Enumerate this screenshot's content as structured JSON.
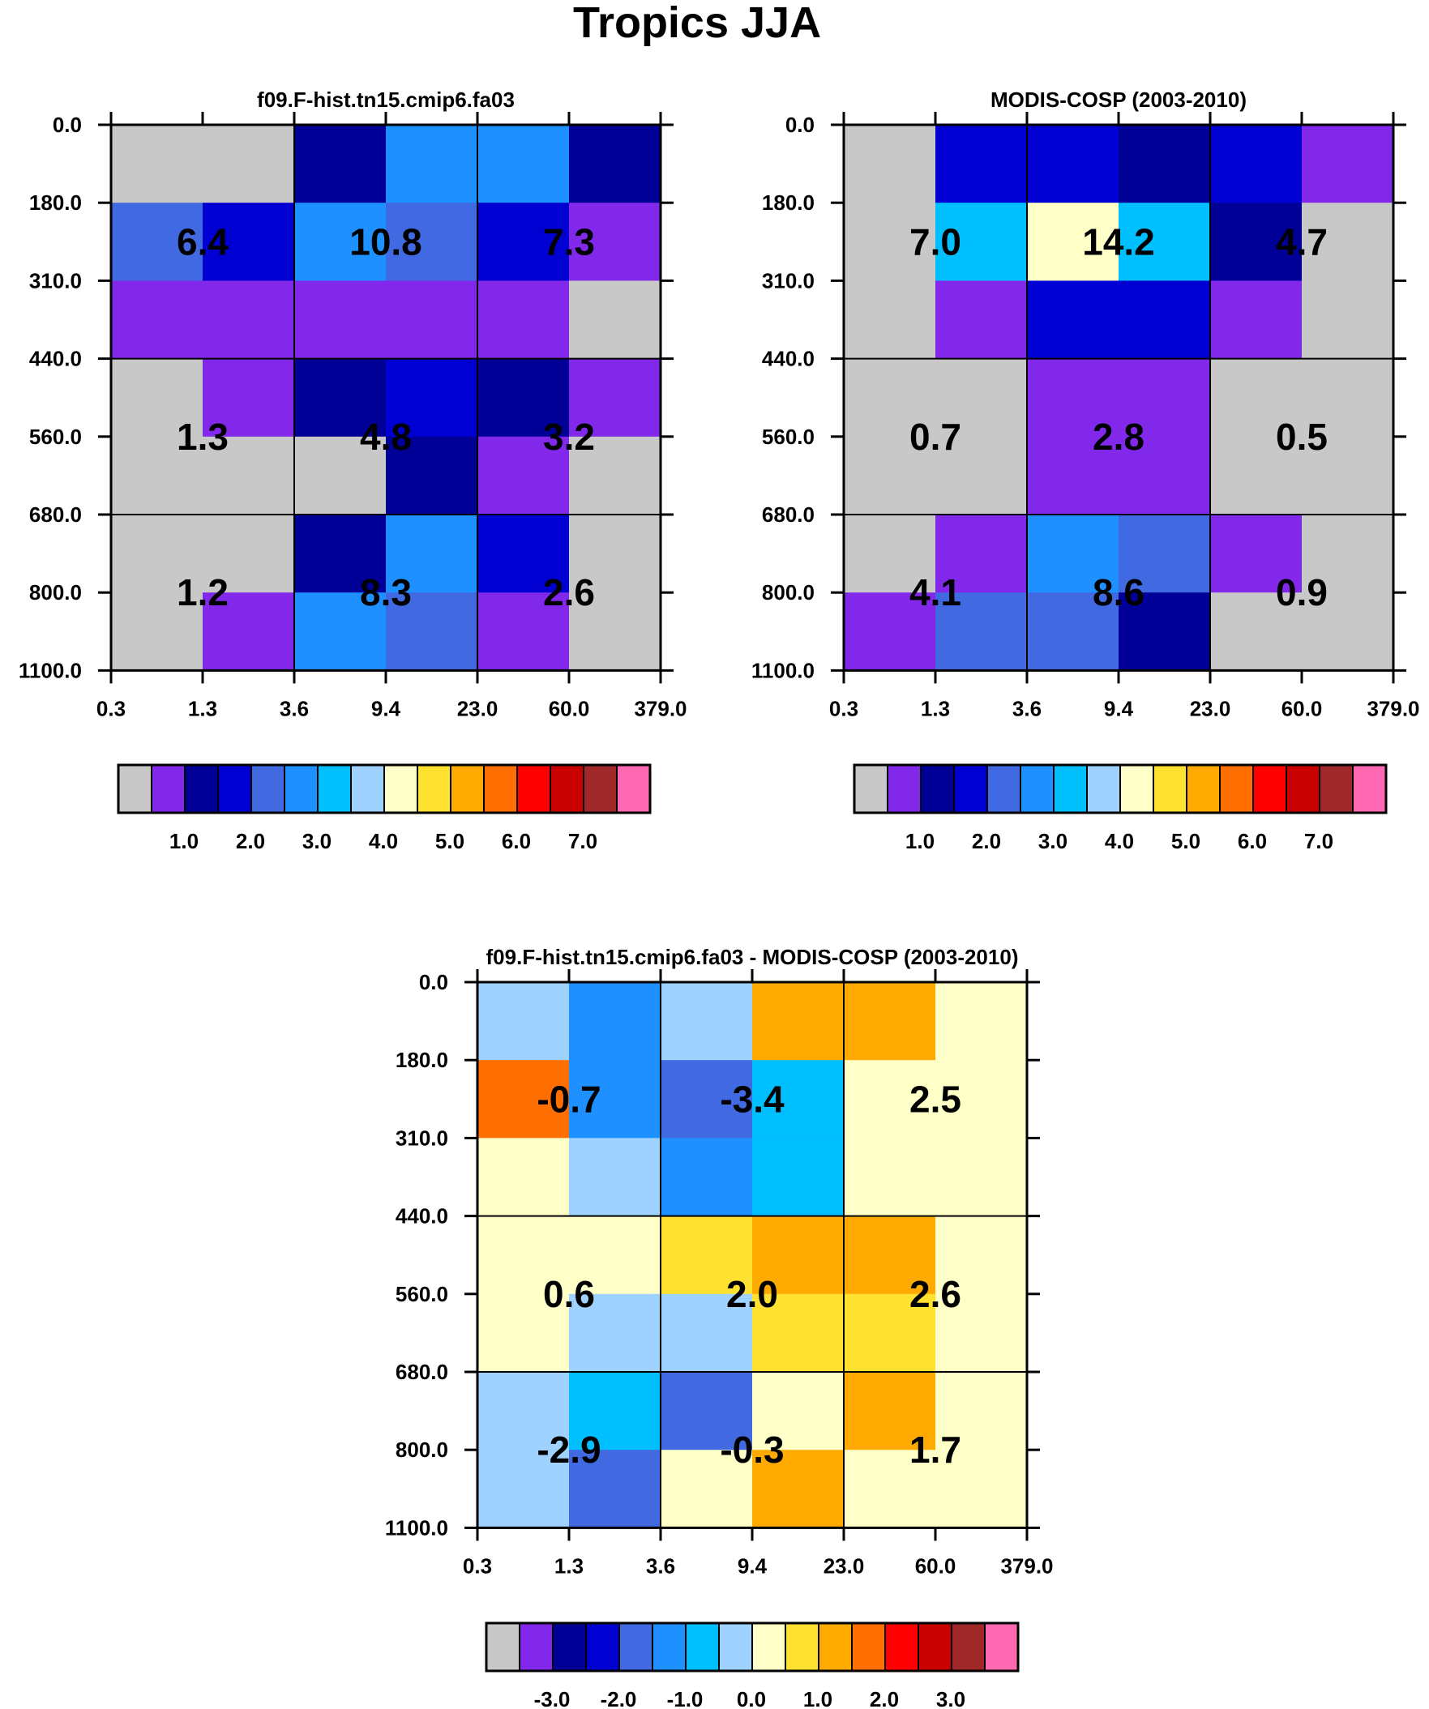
{
  "title": "Tropics JJA",
  "axes": {
    "x_ticks": [
      "0.3",
      "1.3",
      "3.6",
      "9.4",
      "23.0",
      "60.0",
      "379.0"
    ],
    "y_ticks": [
      "0.0",
      "180.0",
      "310.0",
      "440.0",
      "560.0",
      "680.0",
      "800.0",
      "1100.0"
    ]
  },
  "colors": {
    "palette": [
      "#c8c8c8",
      "#8228eb",
      "#000096",
      "#0000d2",
      "#4169e1",
      "#1e90ff",
      "#00bfff",
      "#a0d2ff",
      "#ffffc8",
      "#ffe132",
      "#ffaa00",
      "#ff6e00",
      "#ff0000",
      "#c80000",
      "#a02828",
      "#ff69b4"
    ],
    "text": "#000000",
    "grid": "#000000",
    "background": "#ffffff"
  },
  "colorbars": [
    {
      "labels": [
        "1.0",
        "2.0",
        "3.0",
        "4.0",
        "5.0",
        "6.0",
        "7.0"
      ]
    },
    {
      "labels": [
        "-3.0",
        "-2.0",
        "-1.0",
        "0.0",
        "1.0",
        "2.0",
        "3.0"
      ]
    }
  ],
  "chart_data": [
    {
      "type": "heatmap",
      "title": "f09.F-hist.tn15.cmip6.fa03",
      "colorbar": 0,
      "cells": [
        [
          0,
          0,
          2,
          5,
          5,
          2
        ],
        [
          4,
          3,
          5,
          4,
          3,
          1
        ],
        [
          1,
          1,
          1,
          1,
          1,
          0
        ],
        [
          0,
          1,
          2,
          3,
          2,
          1
        ],
        [
          0,
          0,
          0,
          2,
          1,
          0
        ],
        [
          0,
          0,
          2,
          5,
          3,
          0
        ],
        [
          0,
          1,
          5,
          4,
          1,
          0
        ]
      ],
      "group_totals": [
        [
          "6.4",
          "10.8",
          "7.3"
        ],
        [
          "1.3",
          "4.8",
          "3.2"
        ],
        [
          "1.2",
          "8.3",
          "2.6"
        ]
      ]
    },
    {
      "type": "heatmap",
      "title": "MODIS-COSP (2003-2010)",
      "colorbar": 0,
      "cells": [
        [
          0,
          3,
          3,
          2,
          3,
          1
        ],
        [
          0,
          6,
          8,
          6,
          2,
          0
        ],
        [
          0,
          1,
          3,
          3,
          1,
          0
        ],
        [
          0,
          0,
          1,
          1,
          0,
          0
        ],
        [
          0,
          0,
          1,
          1,
          0,
          0
        ],
        [
          0,
          1,
          5,
          4,
          1,
          0
        ],
        [
          1,
          4,
          4,
          2,
          0,
          0
        ]
      ],
      "group_totals": [
        [
          "7.0",
          "14.2",
          "4.7"
        ],
        [
          "0.7",
          "2.8",
          "0.5"
        ],
        [
          "4.1",
          "8.6",
          "0.9"
        ]
      ]
    },
    {
      "type": "heatmap",
      "title": "f09.F-hist.tn15.cmip6.fa03 - MODIS-COSP (2003-2010)",
      "colorbar": 1,
      "cells": [
        [
          7,
          5,
          7,
          10,
          10,
          8
        ],
        [
          11,
          5,
          4,
          6,
          8,
          8
        ],
        [
          8,
          7,
          5,
          6,
          8,
          8
        ],
        [
          8,
          8,
          9,
          10,
          10,
          8
        ],
        [
          8,
          7,
          7,
          9,
          9,
          8
        ],
        [
          7,
          6,
          4,
          8,
          10,
          8
        ],
        [
          7,
          4,
          8,
          10,
          8,
          8
        ]
      ],
      "group_totals": [
        [
          "-0.7",
          "-3.4",
          "2.5"
        ],
        [
          "0.6",
          "2.0",
          "2.6"
        ],
        [
          "-2.9",
          "-0.3",
          "1.7"
        ]
      ]
    }
  ]
}
